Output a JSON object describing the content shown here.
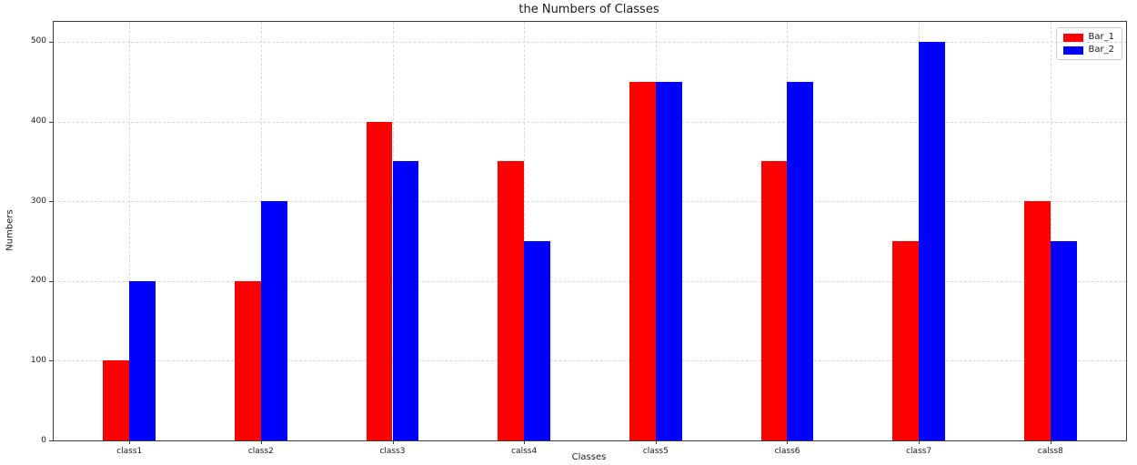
{
  "chart_data": {
    "type": "bar",
    "title": "the Numbers of Classes",
    "xlabel": "Classes",
    "ylabel": "Numbers",
    "categories": [
      "class1",
      "class2",
      "class3",
      "calss4",
      "class5",
      "class6",
      "class7",
      "calss8"
    ],
    "series": [
      {
        "name": "Bar_1",
        "color": "#ff0000",
        "values": [
          100,
          200,
          400,
          350,
          450,
          350,
          250,
          300
        ]
      },
      {
        "name": "Bar_2",
        "color": "#0000ff",
        "values": [
          200,
          300,
          350,
          250,
          450,
          450,
          500,
          250
        ]
      }
    ],
    "ylim": [
      0,
      525
    ],
    "yticks": [
      0,
      100,
      200,
      300,
      400,
      500
    ],
    "bar_width_units": 0.2,
    "grid": true,
    "grid_style": "dashed",
    "grid_color": "#d9d9d9",
    "legend_position": "upper right",
    "axis_color": "#3c3c3c",
    "background_color": "#ffffff"
  }
}
